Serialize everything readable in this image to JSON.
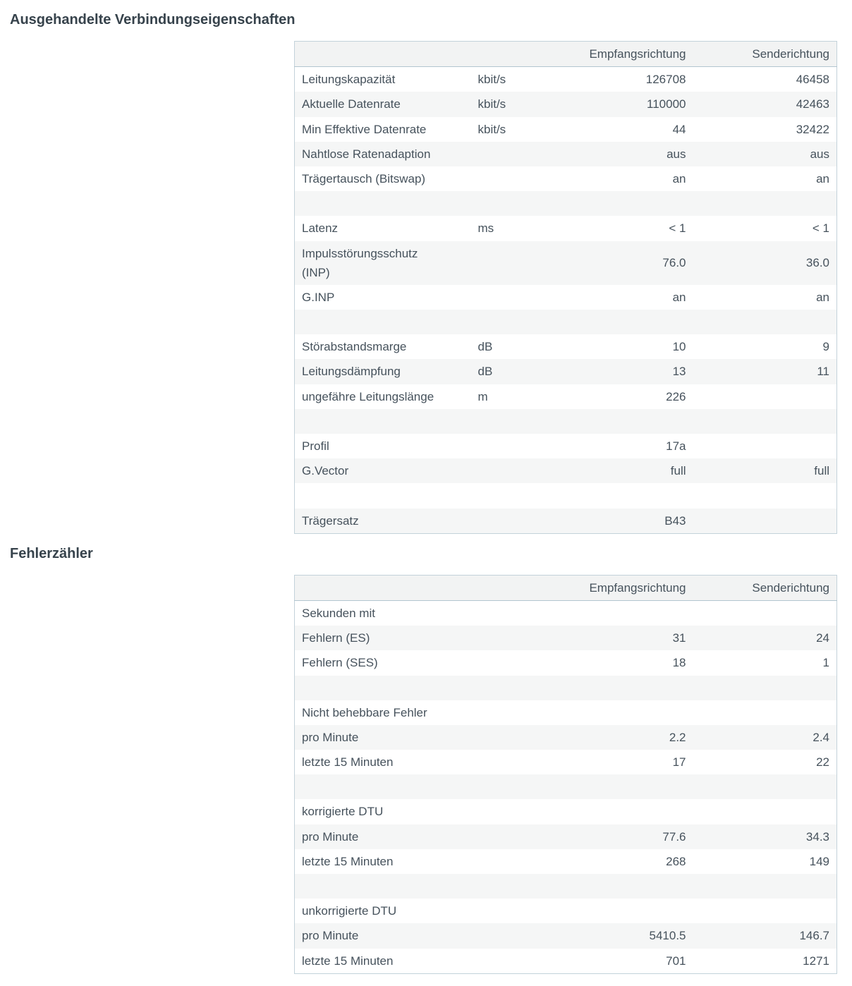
{
  "sections": [
    {
      "title": "Ausgehandelte Verbindungseigenschaften"
    },
    {
      "title": "Fehlerzähler"
    }
  ],
  "tables": [
    {
      "name": "verbindungseigenschaften",
      "headers": {
        "label": "",
        "unit": "",
        "rx": "Empfangsrichtung",
        "tx": "Senderichtung"
      },
      "rows": [
        {
          "label": "Leitungskapazität",
          "unit": "kbit/s",
          "rx": "126708",
          "tx": "46458"
        },
        {
          "label": "Aktuelle Datenrate",
          "unit": "kbit/s",
          "rx": "110000",
          "tx": "42463"
        },
        {
          "label": "Min Effektive Datenrate",
          "unit": "kbit/s",
          "rx": "44",
          "tx": "32422"
        },
        {
          "label": "Nahtlose Ratenadaption",
          "unit": "",
          "rx": "aus",
          "tx": "aus"
        },
        {
          "label": "Trägertausch (Bitswap)",
          "unit": "",
          "rx": "an",
          "tx": "an"
        },
        {
          "spacer": true
        },
        {
          "label": "Latenz",
          "unit": "ms",
          "rx": "< 1",
          "tx": "< 1"
        },
        {
          "label": "Impulsstörungsschutz\n(INP)",
          "unit": "",
          "rx": "76.0",
          "tx": "36.0"
        },
        {
          "label": "G.INP",
          "unit": "",
          "rx": "an",
          "tx": "an"
        },
        {
          "spacer": true
        },
        {
          "label": "Störabstandsmarge",
          "unit": "dB",
          "rx": "10",
          "tx": "9"
        },
        {
          "label": "Leitungsdämpfung",
          "unit": "dB",
          "rx": "13",
          "tx": "11"
        },
        {
          "label": "ungefähre Leitungslänge",
          "unit": "m",
          "rx": "226",
          "tx": ""
        },
        {
          "spacer": true
        },
        {
          "label": "Profil",
          "unit": "",
          "rx": "17a",
          "tx": ""
        },
        {
          "label": "G.Vector",
          "unit": "",
          "rx": "full",
          "tx": "full"
        },
        {
          "spacer": true
        },
        {
          "label": "Trägersatz",
          "unit": "",
          "rx": "B43",
          "tx": ""
        }
      ]
    },
    {
      "name": "fehlerzaehler",
      "headers": {
        "label": "",
        "unit": "",
        "rx": "Empfangsrichtung",
        "tx": "Senderichtung"
      },
      "rows": [
        {
          "label": "Sekunden mit",
          "unit": "",
          "rx": "",
          "tx": ""
        },
        {
          "label": "Fehlern (ES)",
          "unit": "",
          "rx": "31",
          "tx": "24"
        },
        {
          "label": "Fehlern (SES)",
          "unit": "",
          "rx": "18",
          "tx": "1"
        },
        {
          "spacer": true
        },
        {
          "label": "Nicht behebbare Fehler",
          "unit": "",
          "rx": "",
          "tx": ""
        },
        {
          "label": "pro Minute",
          "unit": "",
          "rx": "2.2",
          "tx": "2.4"
        },
        {
          "label": "letzte 15 Minuten",
          "unit": "",
          "rx": "17",
          "tx": "22"
        },
        {
          "spacer": true
        },
        {
          "label": "korrigierte DTU",
          "unit": "",
          "rx": "",
          "tx": ""
        },
        {
          "label": "pro Minute",
          "unit": "",
          "rx": "77.6",
          "tx": "34.3"
        },
        {
          "label": "letzte 15 Minuten",
          "unit": "",
          "rx": "268",
          "tx": "149"
        },
        {
          "spacer": true
        },
        {
          "label": "unkorrigierte DTU",
          "unit": "",
          "rx": "",
          "tx": ""
        },
        {
          "label": "pro Minute",
          "unit": "",
          "rx": "5410.5",
          "tx": "146.7"
        },
        {
          "label": "letzte 15 Minuten",
          "unit": "",
          "rx": "701",
          "tx": "1271"
        }
      ]
    }
  ],
  "colors": {
    "heading_text": "#37434c",
    "cell_text": "#46525c",
    "table_border": "#c3d2da",
    "header_underline": "#b2c5cf",
    "header_bg": "#f2f3f3",
    "zebra_bg": "#f5f6f6"
  }
}
